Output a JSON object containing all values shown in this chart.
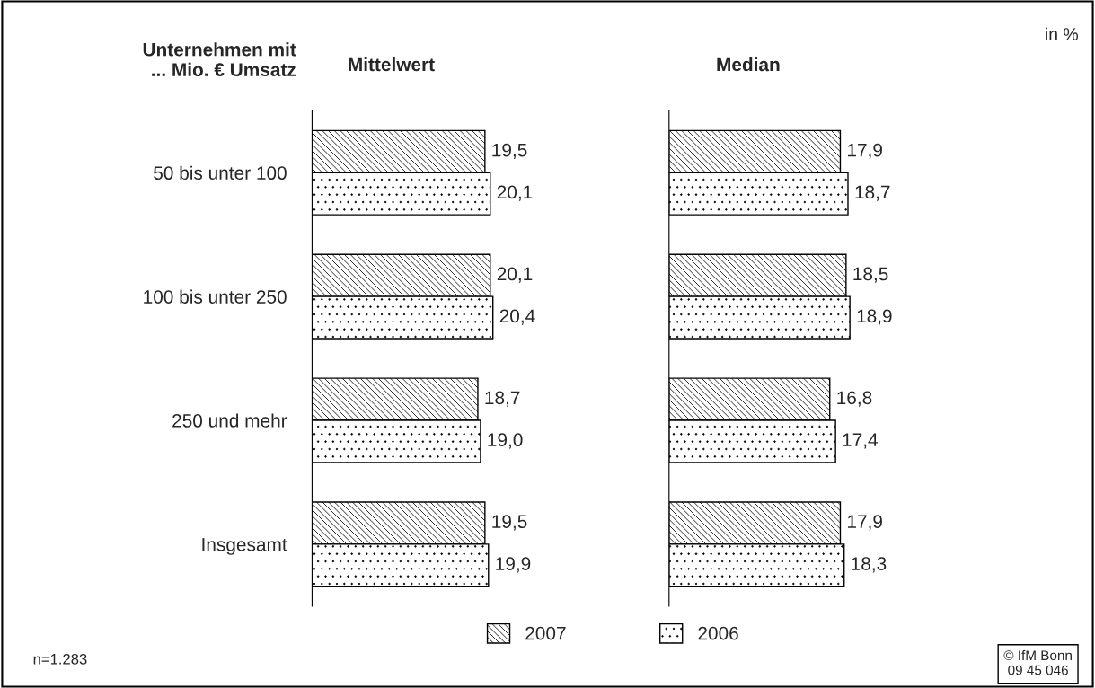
{
  "chart_data": [
    {
      "type": "bar",
      "orientation": "horizontal",
      "title": "Mittelwert",
      "ylabel": "Unternehmen mit\n... Mio. € Umsatz",
      "categories": [
        "50 bis unter 100",
        "100 bis unter 250",
        "250 und mehr",
        "Insgesamt"
      ],
      "series": [
        {
          "name": "2007",
          "color": "#000000",
          "values": [
            19.5,
            20.1,
            18.7,
            19.5
          ],
          "value_labels": [
            "19,5",
            "20,1",
            "18,7",
            "19,5"
          ]
        },
        {
          "name": "2006",
          "color": "#000000",
          "values": [
            20.1,
            20.4,
            19.0,
            19.9
          ],
          "value_labels": [
            "20,1",
            "20,4",
            "19,0",
            "19,9"
          ]
        }
      ],
      "legend": "bottom",
      "tick_labels": "y",
      "annotations": [
        "n=1.283"
      ]
    },
    {
      "type": "bar",
      "orientation": "horizontal",
      "title": "Median",
      "categories": [
        null,
        null,
        null,
        null
      ],
      "series": [
        {
          "color": "#000000",
          "values": [
            17.9,
            18.5,
            16.8,
            17.9
          ],
          "value_labels": [
            "17,9",
            "18,5",
            "16,8",
            "17,9"
          ]
        },
        {
          "color": "#000000",
          "values": [
            18.7,
            18.9,
            17.4,
            18.3
          ],
          "value_labels": [
            "18,7",
            "18,9",
            "17,4",
            "18,3"
          ]
        }
      ],
      "tick_labels": false,
      "annotations": [
        "in %",
        "© IfM Bonn\n09 45 046"
      ]
    }
  ]
}
